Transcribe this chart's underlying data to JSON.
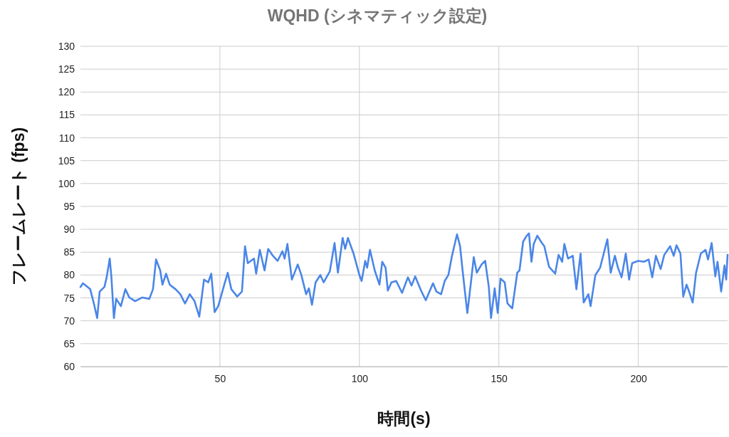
{
  "chart_data": {
    "type": "line",
    "title": "WQHD (シネマティック設定)",
    "xlabel": "時間(s)",
    "ylabel": "フレームレート (fps)",
    "color": "#4a86e8",
    "x": [
      0,
      0.9,
      3.5,
      4.8,
      6.0,
      6.9,
      8.6,
      9.4,
      10.5,
      11.1,
      12.0,
      12.8,
      14.5,
      16.1,
      17.5,
      19.6,
      22.2,
      24.7,
      26.0,
      27.1,
      28.6,
      29.4,
      30.7,
      32.0,
      34.1,
      35.8,
      37.5,
      39.2,
      40.9,
      42.6,
      44.3,
      45.8,
      46.9,
      48.1,
      49.4,
      51.1,
      52.8,
      54.1,
      56.2,
      57.9,
      59.0,
      60.0,
      62.2,
      63.0,
      64.3,
      66.0,
      67.3,
      69.0,
      70.7,
      72.4,
      73.2,
      74.2,
      75.8,
      77.9,
      79.2,
      80.9,
      81.9,
      83.0,
      84.3,
      86.0,
      87.2,
      89.4,
      91.1,
      92.3,
      94.0,
      94.9,
      95.9,
      97.9,
      100.0,
      100.8,
      102.1,
      102.8,
      103.8,
      105.5,
      107.2,
      108.2,
      109.4,
      110.2,
      111.5,
      113.2,
      115.3,
      117.4,
      118.7,
      120.0,
      122.1,
      123.8,
      126.4,
      127.6,
      129.3,
      130.6,
      131.9,
      133.2,
      135.0,
      136.1,
      137.0,
      138.7,
      140.0,
      141.0,
      142.1,
      143.8,
      145.1,
      146.4,
      147.2,
      148.5,
      149.6,
      150.6,
      152.1,
      153.1,
      154.8,
      156.6,
      157.4,
      158.7,
      160.0,
      160.8,
      161.7,
      162.5,
      163.8,
      165.1,
      166.3,
      168.0,
      170.2,
      171.4,
      172.7,
      173.5,
      174.8,
      176.5,
      177.8,
      179.3,
      180.4,
      182.1,
      182.9,
      184.6,
      186.3,
      187.6,
      188.9,
      190.1,
      191.6,
      192.7,
      194.0,
      195.5,
      196.7,
      197.8,
      200.0,
      202.0,
      203.7,
      205.0,
      206.3,
      208.0,
      209.3,
      211.4,
      212.7,
      213.7,
      215.1,
      216.1,
      217.3,
      218.2,
      219.5,
      220.7,
      222.4,
      224.1,
      225.0,
      226.3,
      227.6,
      228.4,
      229.7,
      230.9,
      231.5,
      232.0
    ],
    "values": [
      77.4,
      78.2,
      76.9,
      73.8,
      70.6,
      76.4,
      77.4,
      79.5,
      83.6,
      79.5,
      70.6,
      74.8,
      73.2,
      76.9,
      75.1,
      74.3,
      75.1,
      74.8,
      76.9,
      83.4,
      81.0,
      77.9,
      80.3,
      77.9,
      76.9,
      75.8,
      73.8,
      75.8,
      74.3,
      70.9,
      79.0,
      78.4,
      80.3,
      71.9,
      73.2,
      76.9,
      80.5,
      76.9,
      75.3,
      76.4,
      86.3,
      82.6,
      83.6,
      80.3,
      85.5,
      81.0,
      85.7,
      84.2,
      83.1,
      85.2,
      83.6,
      86.8,
      79.0,
      82.3,
      80.0,
      75.8,
      77.1,
      73.5,
      78.4,
      80.0,
      78.4,
      80.8,
      87.0,
      80.5,
      88.1,
      85.7,
      88.1,
      84.7,
      80.0,
      78.7,
      83.1,
      81.6,
      85.5,
      81.0,
      77.9,
      82.9,
      81.6,
      76.6,
      78.4,
      78.7,
      76.1,
      79.5,
      77.7,
      79.7,
      76.6,
      74.5,
      78.2,
      76.4,
      75.8,
      78.7,
      80.0,
      84.2,
      88.9,
      86.3,
      81.0,
      71.7,
      78.4,
      83.9,
      80.5,
      82.3,
      83.1,
      77.4,
      70.6,
      77.1,
      71.7,
      79.2,
      78.4,
      73.8,
      72.7,
      80.5,
      81.0,
      87.3,
      88.6,
      89.1,
      82.9,
      86.8,
      88.6,
      87.3,
      86.3,
      81.8,
      80.3,
      84.4,
      82.9,
      86.8,
      83.6,
      84.2,
      76.9,
      84.7,
      74.0,
      75.8,
      73.2,
      80.0,
      81.6,
      84.7,
      87.8,
      80.5,
      84.2,
      81.6,
      79.5,
      84.7,
      79.0,
      82.6,
      83.1,
      82.9,
      83.4,
      79.5,
      84.2,
      81.3,
      84.4,
      86.3,
      84.2,
      86.5,
      84.7,
      75.3,
      77.9,
      76.4,
      74.0,
      80.5,
      84.7,
      85.5,
      83.4,
      87.0,
      79.7,
      82.9,
      76.4,
      82.1,
      79.0,
      84.4
    ],
    "xlim": [
      0,
      232
    ],
    "xticks": [
      50,
      100,
      150,
      200
    ],
    "ylim": [
      60,
      130
    ],
    "yticks": [
      60,
      65,
      70,
      75,
      80,
      85,
      90,
      95,
      100,
      105,
      110,
      115,
      120,
      125,
      130
    ],
    "grid": true
  }
}
